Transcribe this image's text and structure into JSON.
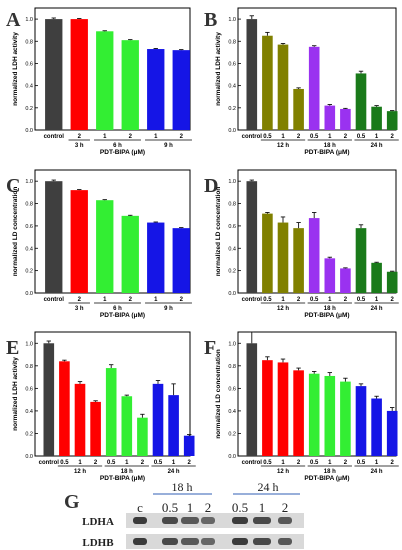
{
  "chart_data": [
    {
      "panel": "A",
      "type": "bar",
      "ylabel": "normalized LDH activity",
      "xlabel": "PDT-BIPA (μM)",
      "ylim": [
        0,
        1.1
      ],
      "yticks": [
        0,
        0.2,
        0.4,
        0.6,
        0.8,
        1.0
      ],
      "categories": [
        "control",
        "2",
        "1",
        "2",
        "1",
        "2"
      ],
      "values": [
        1.0,
        1.0,
        0.89,
        0.81,
        0.73,
        0.72
      ],
      "errors": [
        0.01,
        0.005,
        0.005,
        0.005,
        0.005,
        0.005
      ],
      "colors": [
        "#3f3f3f",
        "#ff0000",
        "#33ee33",
        "#33ee33",
        "#1515e6",
        "#1515e6"
      ],
      "groups": [
        {
          "label": "3 h",
          "from": 1,
          "to": 1
        },
        {
          "label": "6 h",
          "from": 2,
          "to": 3
        },
        {
          "label": "9 h",
          "from": 4,
          "to": 5
        }
      ]
    },
    {
      "panel": "B",
      "type": "bar",
      "ylabel": "normalized LDH activity",
      "xlabel": "PDT-BIPA (μM)",
      "ylim": [
        0,
        1.1
      ],
      "yticks": [
        0,
        0.2,
        0.4,
        0.6,
        0.8,
        1.0
      ],
      "categories": [
        "control",
        "0.5",
        "1",
        "2",
        "0.5",
        "1",
        "2",
        "0.5",
        "1",
        "2"
      ],
      "values": [
        1.0,
        0.85,
        0.77,
        0.37,
        0.75,
        0.22,
        0.19,
        0.51,
        0.21,
        0.17
      ],
      "errors": [
        0.03,
        0.03,
        0.01,
        0.01,
        0.01,
        0.01,
        0.005,
        0.02,
        0.01,
        0.005
      ],
      "colors": [
        "#3f3f3f",
        "#808000",
        "#808000",
        "#808000",
        "#9a32f0",
        "#9a32f0",
        "#9a32f0",
        "#1a7a1a",
        "#1a7a1a",
        "#1a7a1a"
      ],
      "groups": [
        {
          "label": "12 h",
          "from": 1,
          "to": 3
        },
        {
          "label": "18 h",
          "from": 4,
          "to": 6
        },
        {
          "label": "24 h",
          "from": 7,
          "to": 9
        }
      ]
    },
    {
      "panel": "C",
      "type": "bar",
      "ylabel": "normalized LD concentration",
      "xlabel": "PDT-BIPA (μM)",
      "ylim": [
        0,
        1.1
      ],
      "yticks": [
        0,
        0.2,
        0.4,
        0.6,
        0.8,
        1.0
      ],
      "categories": [
        "control",
        "2",
        "1",
        "2",
        "1",
        "2"
      ],
      "values": [
        1.0,
        0.92,
        0.83,
        0.69,
        0.63,
        0.58
      ],
      "errors": [
        0.01,
        0.005,
        0.005,
        0.005,
        0.005,
        0.005
      ],
      "colors": [
        "#3f3f3f",
        "#ff0000",
        "#33ee33",
        "#33ee33",
        "#1515e6",
        "#1515e6"
      ],
      "groups": [
        {
          "label": "3 h",
          "from": 1,
          "to": 1
        },
        {
          "label": "6 h",
          "from": 2,
          "to": 3
        },
        {
          "label": "9 h",
          "from": 4,
          "to": 5
        }
      ]
    },
    {
      "panel": "D",
      "type": "bar",
      "ylabel": "normalized LD concentration",
      "xlabel": "PDT-BIPA (μM)",
      "ylim": [
        0,
        1.1
      ],
      "yticks": [
        0,
        0.2,
        0.4,
        0.6,
        0.8,
        1.0
      ],
      "categories": [
        "control",
        "0.5",
        "1",
        "2",
        "0.5",
        "1",
        "2",
        "0.5",
        "1",
        "2"
      ],
      "values": [
        1.0,
        0.71,
        0.63,
        0.58,
        0.67,
        0.31,
        0.22,
        0.58,
        0.27,
        0.19
      ],
      "errors": [
        0.01,
        0.01,
        0.05,
        0.05,
        0.05,
        0.01,
        0.005,
        0.03,
        0.005,
        0.005
      ],
      "colors": [
        "#3f3f3f",
        "#808000",
        "#808000",
        "#808000",
        "#9a32f0",
        "#9a32f0",
        "#9a32f0",
        "#1a7a1a",
        "#1a7a1a",
        "#1a7a1a"
      ],
      "groups": [
        {
          "label": "12 h",
          "from": 1,
          "to": 3
        },
        {
          "label": "18 h",
          "from": 4,
          "to": 6
        },
        {
          "label": "24 h",
          "from": 7,
          "to": 9
        }
      ]
    },
    {
      "panel": "E",
      "type": "bar",
      "ylabel": "normalized LDH activity",
      "xlabel": "PDT-BIPA (μM)",
      "ylim": [
        0,
        1.1
      ],
      "yticks": [
        0,
        0.2,
        0.4,
        0.6,
        0.8,
        1.0
      ],
      "categories": [
        "control",
        "0.5",
        "1",
        "2",
        "0.5",
        "1",
        "2",
        "0.5",
        "1",
        "2"
      ],
      "values": [
        1.0,
        0.84,
        0.64,
        0.48,
        0.78,
        0.53,
        0.34,
        0.64,
        0.54,
        0.18
      ],
      "errors": [
        0.02,
        0.01,
        0.02,
        0.01,
        0.03,
        0.01,
        0.03,
        0.03,
        0.1,
        0.01
      ],
      "colors": [
        "#3f3f3f",
        "#ff0000",
        "#ff0000",
        "#ff0000",
        "#33ee33",
        "#33ee33",
        "#33ee33",
        "#1515e6",
        "#1515e6",
        "#1515e6"
      ],
      "groups": [
        {
          "label": "12 h",
          "from": 1,
          "to": 3
        },
        {
          "label": "18 h",
          "from": 4,
          "to": 6
        },
        {
          "label": "24 h",
          "from": 7,
          "to": 9
        }
      ]
    },
    {
      "panel": "F",
      "type": "bar",
      "ylabel": "normalized LD concentration",
      "xlabel": "PDT-BIPA (μM)",
      "ylim": [
        0,
        1.1
      ],
      "yticks": [
        0,
        0.2,
        0.4,
        0.6,
        0.8,
        1.0
      ],
      "categories": [
        "control",
        "0.5",
        "1",
        "2",
        "0.5",
        "1",
        "2",
        "0.5",
        "1",
        "2"
      ],
      "values": [
        1.0,
        0.85,
        0.83,
        0.76,
        0.73,
        0.71,
        0.66,
        0.62,
        0.51,
        0.4
      ],
      "errors": [
        0.1,
        0.03,
        0.03,
        0.02,
        0.02,
        0.03,
        0.03,
        0.02,
        0.02,
        0.03
      ],
      "colors": [
        "#3f3f3f",
        "#ff0000",
        "#ff0000",
        "#ff0000",
        "#33ee33",
        "#33ee33",
        "#33ee33",
        "#1515e6",
        "#1515e6",
        "#1515e6"
      ],
      "groups": [
        {
          "label": "12 h",
          "from": 1,
          "to": 3
        },
        {
          "label": "18 h",
          "from": 4,
          "to": 6
        },
        {
          "label": "24 h",
          "from": 7,
          "to": 9
        }
      ]
    }
  ],
  "blot": {
    "panel": "G",
    "time_labels": [
      "18 h",
      "24 h"
    ],
    "lane_labels": [
      "c",
      "0.5",
      "1",
      "2",
      "0.5",
      "1",
      "2"
    ],
    "rows": [
      "LDHA",
      "LDHB"
    ]
  }
}
